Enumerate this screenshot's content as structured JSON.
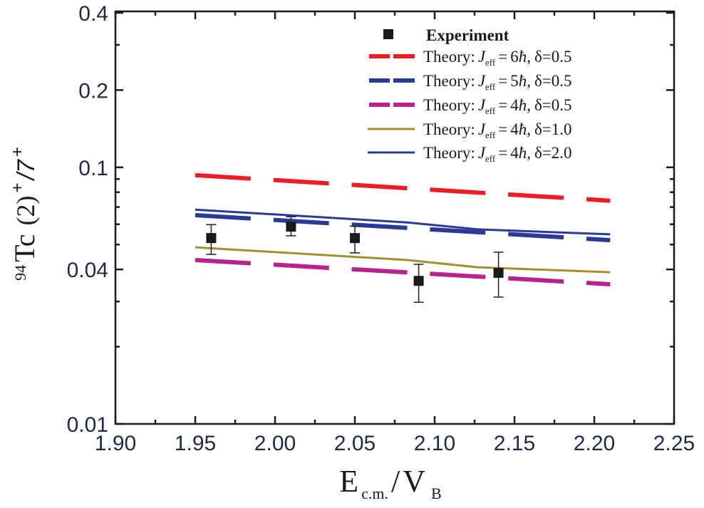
{
  "chart_data": {
    "type": "scatter",
    "title": "",
    "xlabel": {
      "main": "E",
      "sub1": "c.m.",
      "slash": "/",
      "main2": "V",
      "sub2": "B"
    },
    "ylabel": {
      "mass": "94",
      "element": "Tc",
      "paren": "(2)",
      "plus1": "+",
      "ratio": "/7",
      "plus2": "+"
    },
    "xlim": [
      1.9,
      2.25
    ],
    "ylim": [
      0.01,
      0.4
    ],
    "yscale": "log",
    "xticks": [
      "1.90",
      "1.95",
      "2.00",
      "2.05",
      "2.10",
      "2.15",
      "2.20",
      "2.25"
    ],
    "xtick_values": [
      1.9,
      1.95,
      2.0,
      2.05,
      2.1,
      2.15,
      2.2,
      2.25
    ],
    "xminor": [
      1.925,
      1.975,
      2.025,
      2.075,
      2.125,
      2.175,
      2.225
    ],
    "yticks": [
      "0.4",
      "0.2",
      "0.1",
      "0.04",
      "0.01"
    ],
    "ytick_values": [
      0.4,
      0.2,
      0.1,
      0.04,
      0.01
    ],
    "yminor": [
      0.3,
      0.09,
      0.08,
      0.07,
      0.06,
      0.05,
      0.03,
      0.02
    ],
    "legend_position": "top-right",
    "experiment": {
      "name": "Experiment",
      "color": "#1a1a1a",
      "x": [
        1.96,
        2.01,
        2.05,
        2.09,
        2.14
      ],
      "y": [
        0.053,
        0.0587,
        0.053,
        0.0361,
        0.0388
      ],
      "err_low": [
        0.0458,
        0.0541,
        0.0464,
        0.0298,
        0.0312
      ],
      "err_high": [
        0.0598,
        0.0642,
        0.059,
        0.0419,
        0.0467
      ]
    },
    "series": [
      {
        "name": "Theory",
        "jval": "6",
        "delta": "δ=0.5",
        "color": "#ee1c25",
        "style": "dashed",
        "x": [
          1.95,
          2.21
        ],
        "y": [
          0.0932,
          0.0741
        ]
      },
      {
        "name": "Theory",
        "jval": "5",
        "delta": "δ=0.5",
        "color": "#2b3a97",
        "style": "dashed",
        "x": [
          1.95,
          2.21
        ],
        "y": [
          0.0651,
          0.052
        ]
      },
      {
        "name": "Theory",
        "jval": "4",
        "delta": "δ=0.5",
        "color": "#b8218e",
        "style": "dashed",
        "x": [
          1.95,
          2.21
        ],
        "y": [
          0.0435,
          0.035
        ]
      },
      {
        "name": "Theory",
        "jval": "4",
        "delta": "δ=1.0",
        "color": "#a09030",
        "style": "solid",
        "x": [
          1.95,
          2.083,
          2.127,
          2.21
        ],
        "y": [
          0.0488,
          0.0435,
          0.0408,
          0.039
        ]
      },
      {
        "name": "Theory",
        "jval": "4",
        "delta": "δ=2.0",
        "color": "#2b3a97",
        "style": "solid",
        "x": [
          1.95,
          2.083,
          2.127,
          2.21
        ],
        "y": [
          0.0684,
          0.061,
          0.0573,
          0.0548
        ]
      }
    ],
    "legend_labels": {
      "prefix": "Theory:",
      "j": "J",
      "jsub": "eff",
      "eq": "=",
      "hbar": "ħ",
      "comma": ","
    }
  }
}
